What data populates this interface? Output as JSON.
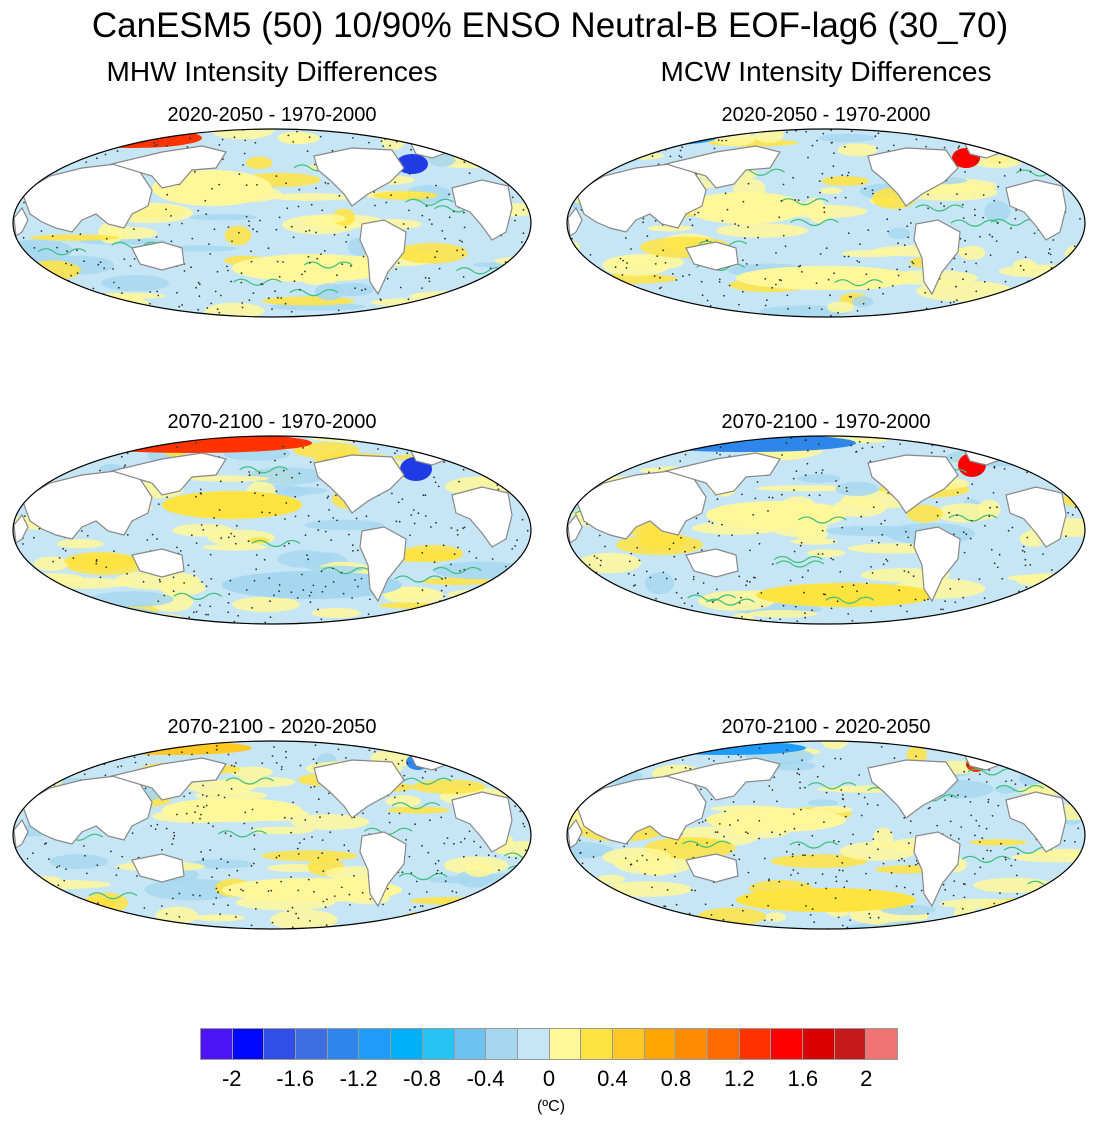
{
  "figure": {
    "title": "CanESM5 (50) 10/90% ENSO Neutral-B EOF-lag6 (30_70)",
    "columns": [
      {
        "title": "MHW Intensity Differences"
      },
      {
        "title": "MCW Intensity Differences"
      }
    ],
    "panels": [
      {
        "column": "MHW",
        "title": "2020-2050 - 1970-2000"
      },
      {
        "column": "MCW",
        "title": "2020-2050 - 1970-2000"
      },
      {
        "column": "MHW",
        "title": "2070-2100 - 1970-2000"
      },
      {
        "column": "MCW",
        "title": "2070-2100 - 1970-2000"
      },
      {
        "column": "MHW",
        "title": "2070-2100 - 2020-2050"
      },
      {
        "column": "MCW",
        "title": "2070-2100 - 2020-2050"
      }
    ]
  },
  "colorbar": {
    "colors": [
      "#4d15f5",
      "#0008ff",
      "#2f4fe6",
      "#3e6fe0",
      "#2f86ea",
      "#1f9cf8",
      "#00b0f6",
      "#26c3f5",
      "#6cc3ef",
      "#a6d7f0",
      "#c6e6f6",
      "#fff799",
      "#ffe33f",
      "#ffc825",
      "#ffa600",
      "#ff8c00",
      "#ff6a00",
      "#ff3300",
      "#ff0000",
      "#d90000",
      "#c71b1b",
      "#ef7373"
    ],
    "ticks": [
      "-2",
      "-1.6",
      "-1.2",
      "-0.8",
      "-0.4",
      "0",
      "0.4",
      "0.8",
      "1.2",
      "1.6",
      "2"
    ],
    "unit": "(ºC)"
  }
}
